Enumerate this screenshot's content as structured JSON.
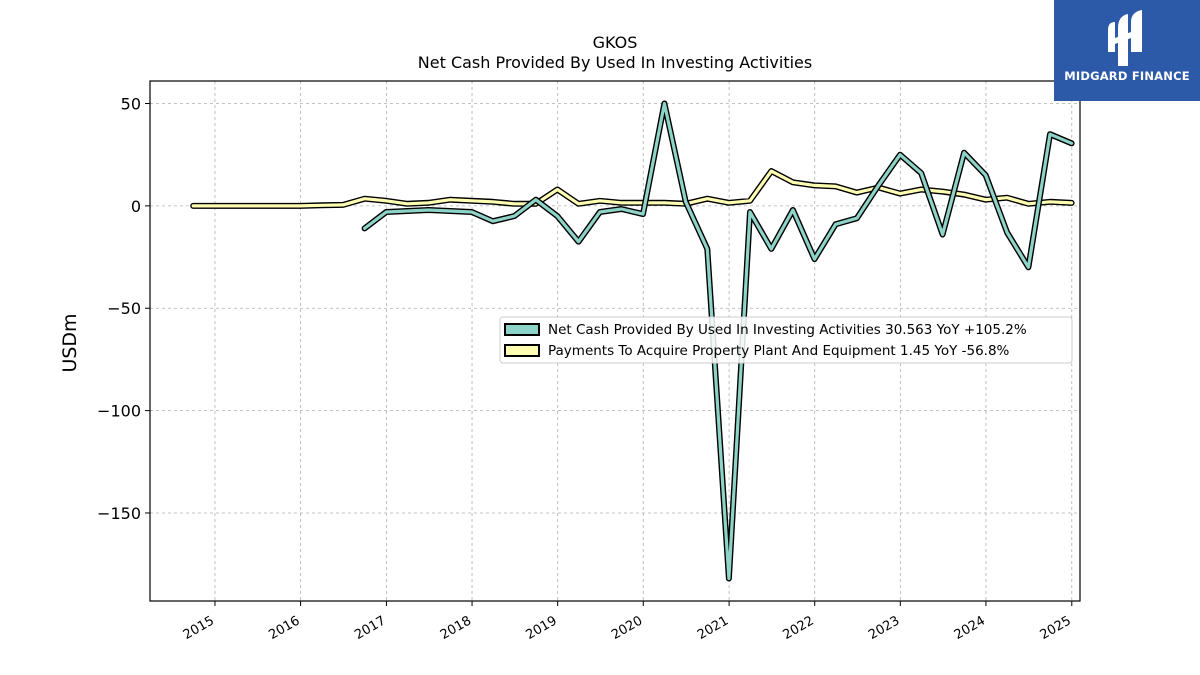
{
  "brand": {
    "name": "MIDGARD FINANCE",
    "icon": "midgard-m-logo-icon",
    "background": "#2c5aa8"
  },
  "chart_data": {
    "type": "line",
    "title": "GKOS",
    "subtitle": "Net Cash Provided By Used In Investing Activities",
    "ylabel": "USDm",
    "xlabel": "",
    "ylim": [
      -193,
      61
    ],
    "xlim": [
      "2014-03-30",
      "2025-02-05"
    ],
    "yticks": [
      50,
      0,
      -50,
      -100,
      -150
    ],
    "ytick_labels": [
      "50",
      "0",
      "−50",
      "−100",
      "−150"
    ],
    "xticks": [
      "2015",
      "2016",
      "2017",
      "2018",
      "2019",
      "2020",
      "2021",
      "2022",
      "2023",
      "2024",
      "2025"
    ],
    "grid": true,
    "legend_position": "center-right",
    "series": [
      {
        "name": "Net Cash Provided By Used In Investing Activities",
        "legend_label": "Net Cash Provided By Used In Investing Activities  30.563 YoY +105.2%",
        "color": "#8dd3c7",
        "points": [
          [
            "2016-09-30",
            -11
          ],
          [
            "2016-12-31",
            -3
          ],
          [
            "2017-03-31",
            -2.5
          ],
          [
            "2017-06-30",
            -2
          ],
          [
            "2017-09-30",
            -2.5
          ],
          [
            "2017-12-31",
            -3
          ],
          [
            "2018-03-31",
            -7.5
          ],
          [
            "2018-06-30",
            -5
          ],
          [
            "2018-09-30",
            3
          ],
          [
            "2018-12-31",
            -5
          ],
          [
            "2019-03-31",
            -17.5
          ],
          [
            "2019-06-30",
            -3
          ],
          [
            "2019-09-30",
            -1.5
          ],
          [
            "2019-12-31",
            -4
          ],
          [
            "2020-03-31",
            50
          ],
          [
            "2020-06-30",
            2
          ],
          [
            "2020-09-30",
            -21
          ],
          [
            "2020-12-31",
            -182
          ],
          [
            "2021-03-31",
            -3
          ],
          [
            "2021-06-30",
            -21
          ],
          [
            "2021-09-30",
            -2
          ],
          [
            "2021-12-31",
            -26
          ],
          [
            "2022-03-31",
            -9
          ],
          [
            "2022-06-30",
            -6
          ],
          [
            "2022-09-30",
            10
          ],
          [
            "2022-12-31",
            25
          ],
          [
            "2023-03-31",
            16
          ],
          [
            "2023-06-30",
            -14
          ],
          [
            "2023-09-30",
            26
          ],
          [
            "2023-12-31",
            15
          ],
          [
            "2024-03-31",
            -13
          ],
          [
            "2024-06-30",
            -30
          ],
          [
            "2024-09-30",
            35
          ],
          [
            "2024-12-31",
            30.563
          ]
        ]
      },
      {
        "name": "Payments To Acquire Property Plant And Equipment",
        "legend_label": "Payments To Acquire Property Plant And Equipment  1.45 YoY -56.8%",
        "color": "#ffffb3",
        "points": [
          [
            "2014-09-30",
            0
          ],
          [
            "2014-12-31",
            0
          ],
          [
            "2015-03-31",
            0
          ],
          [
            "2015-06-30",
            0
          ],
          [
            "2015-09-30",
            0
          ],
          [
            "2015-12-31",
            0
          ],
          [
            "2016-03-31",
            0.3
          ],
          [
            "2016-06-30",
            0.5
          ],
          [
            "2016-09-30",
            3.5
          ],
          [
            "2016-12-31",
            2.5
          ],
          [
            "2017-03-31",
            1
          ],
          [
            "2017-06-30",
            1.5
          ],
          [
            "2017-09-30",
            3
          ],
          [
            "2017-12-31",
            2.5
          ],
          [
            "2018-03-31",
            2
          ],
          [
            "2018-06-30",
            1
          ],
          [
            "2018-09-30",
            1
          ],
          [
            "2018-12-31",
            8
          ],
          [
            "2019-03-31",
            1
          ],
          [
            "2019-06-30",
            2.5
          ],
          [
            "2019-09-30",
            1.5
          ],
          [
            "2019-12-31",
            1.5
          ],
          [
            "2020-03-31",
            1.5
          ],
          [
            "2020-06-30",
            1
          ],
          [
            "2020-09-30",
            3.5
          ],
          [
            "2020-12-31",
            1.5
          ],
          [
            "2021-03-31",
            2.5
          ],
          [
            "2021-06-30",
            17
          ],
          [
            "2021-09-30",
            11.5
          ],
          [
            "2021-12-31",
            10
          ],
          [
            "2022-03-31",
            9.5
          ],
          [
            "2022-06-30",
            6.5
          ],
          [
            "2022-09-30",
            9
          ],
          [
            "2022-12-31",
            6
          ],
          [
            "2023-03-31",
            8
          ],
          [
            "2023-06-30",
            7
          ],
          [
            "2023-09-30",
            5.5
          ],
          [
            "2023-12-31",
            3
          ],
          [
            "2024-03-31",
            4
          ],
          [
            "2024-06-30",
            1
          ],
          [
            "2024-09-30",
            2
          ],
          [
            "2024-12-31",
            1.45
          ]
        ]
      }
    ]
  }
}
